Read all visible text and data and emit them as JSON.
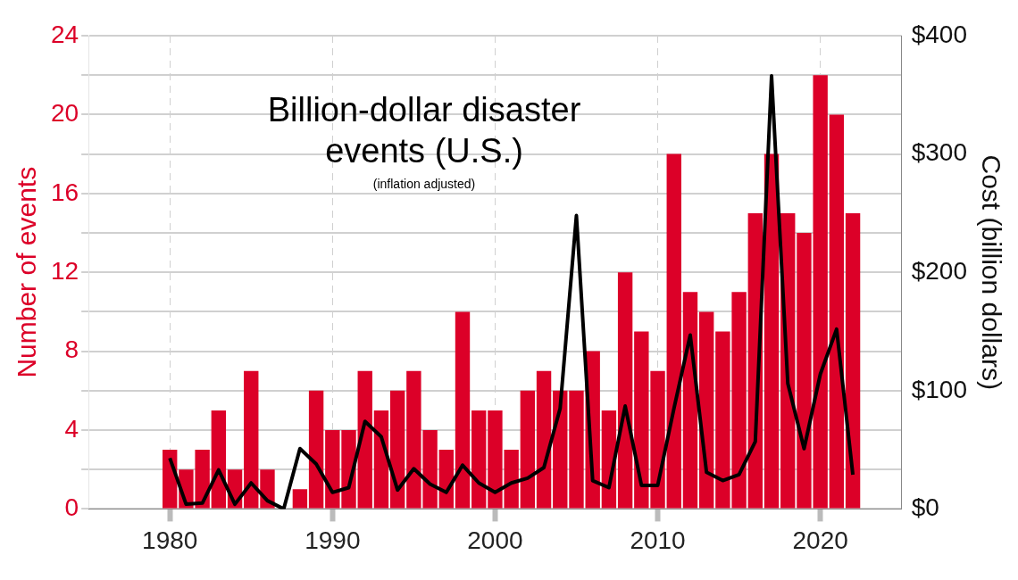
{
  "chart_data": {
    "type": "bar",
    "title": "Billion-dollar disaster events (U.S.)",
    "subtitle": "(inflation adjusted)",
    "ylabel": "Number of events",
    "y2label": "Cost (billion dollars)",
    "x": [
      1980,
      1981,
      1982,
      1983,
      1984,
      1985,
      1986,
      1987,
      1988,
      1989,
      1990,
      1991,
      1992,
      1993,
      1994,
      1995,
      1996,
      1997,
      1998,
      1999,
      2000,
      2001,
      2002,
      2003,
      2004,
      2005,
      2006,
      2007,
      2008,
      2009,
      2010,
      2011,
      2012,
      2013,
      2014,
      2015,
      2016,
      2017,
      2018,
      2019,
      2020,
      2021,
      2022
    ],
    "series": [
      {
        "color": "#dc0028",
        "values": [
          3,
          2,
          3,
          5,
          2,
          7,
          2,
          0,
          1,
          6,
          4,
          4,
          7,
          5,
          6,
          7,
          4,
          3,
          10,
          5,
          5,
          3,
          6,
          7,
          6,
          6,
          8,
          5,
          12,
          9,
          7,
          18,
          11,
          10,
          9,
          11,
          15,
          18,
          15,
          14,
          22,
          20,
          15
        ]
      },
      {
        "type": "line",
        "axis": "y2",
        "color": "#000000",
        "values": [
          43,
          4,
          5,
          33,
          4,
          22,
          7,
          0,
          51,
          38,
          14,
          18,
          74,
          61,
          16,
          34,
          21,
          14,
          37,
          22,
          14,
          22,
          26,
          35,
          85,
          248,
          24,
          18,
          87,
          20,
          20,
          85,
          147,
          31,
          24,
          29,
          57,
          366,
          106,
          51,
          114,
          152,
          29
        ]
      }
    ],
    "xlim": [
      1975,
      2025
    ],
    "xticks": [
      1980,
      1990,
      2000,
      2010,
      2020
    ],
    "ylim": [
      0,
      24
    ],
    "yticks": [
      0,
      {
        "value": 2,
        "label": null
      },
      4,
      {
        "value": 6,
        "label": null
      },
      8,
      {
        "value": 10,
        "label": null
      },
      12,
      {
        "value": 14,
        "label": null
      },
      16,
      {
        "value": 18,
        "label": null
      },
      20,
      {
        "value": 22,
        "label": null
      },
      24
    ],
    "y2lim": [
      0,
      400
    ],
    "y2ticks": [
      {
        "value": 0,
        "label": "$0"
      },
      {
        "value": 100,
        "label": "$100"
      },
      {
        "value": 200,
        "label": "$200"
      },
      {
        "value": 300,
        "label": "$300"
      },
      {
        "value": 400,
        "label": "$400"
      }
    ],
    "grid": true,
    "marker": "none",
    "line_style": "solid"
  }
}
